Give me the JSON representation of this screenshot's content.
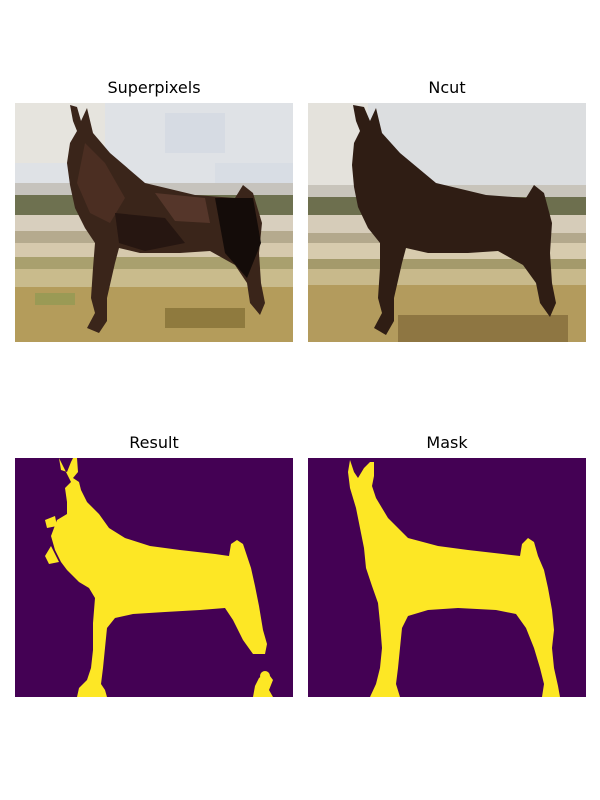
{
  "figure": {
    "panels": [
      {
        "title": "Superpixels",
        "kind": "image"
      },
      {
        "title": "Ncut",
        "kind": "image"
      },
      {
        "title": "Result",
        "kind": "mask"
      },
      {
        "title": "Mask",
        "kind": "mask"
      }
    ],
    "colors": {
      "mask_background": "#440154",
      "mask_foreground": "#fde725",
      "sky": "#dfe3e6",
      "horse_dark": "#2f1d14",
      "ground_tan": "#b09a5a"
    }
  }
}
